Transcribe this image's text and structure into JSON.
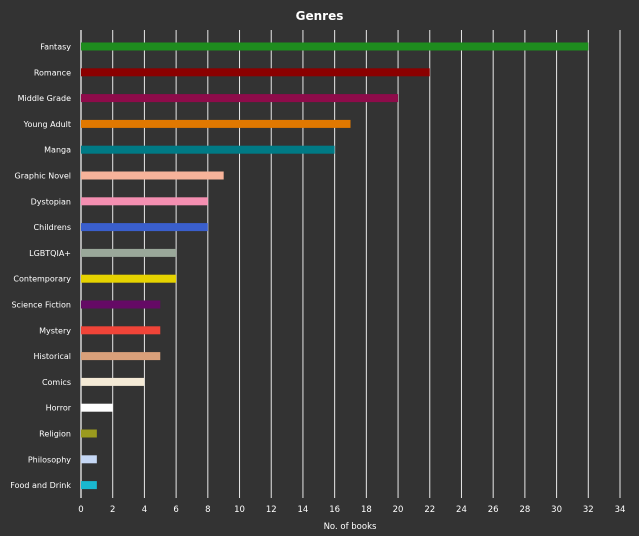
{
  "chart_data": {
    "type": "bar",
    "orientation": "horizontal",
    "title": "Genres",
    "xlabel": "No. of books",
    "ylabel": "",
    "xlim": [
      0,
      34
    ],
    "xticks": [
      0,
      2,
      4,
      6,
      8,
      10,
      12,
      14,
      16,
      18,
      20,
      22,
      24,
      26,
      28,
      30,
      32,
      34
    ],
    "grid": "vertical",
    "legend": "none",
    "background": "#333333",
    "categories": [
      "Fantasy",
      "Romance",
      "Middle Grade",
      "Young Adult",
      "Manga",
      "Graphic Novel",
      "Dystopian",
      "Childrens",
      "LGBTQIA+",
      "Contemporary",
      "Science Fiction",
      "Mystery",
      "Historical",
      "Comics",
      "Horror",
      "Religion",
      "Philosophy",
      "Food and Drink"
    ],
    "values": [
      32,
      22,
      20,
      17,
      16,
      9,
      8,
      8,
      6,
      6,
      5,
      5,
      5,
      4,
      2,
      1,
      1,
      1
    ],
    "colors": [
      "#1e8c1e",
      "#8b0000",
      "#8e0b4a",
      "#e07800",
      "#007a85",
      "#f7b39a",
      "#f48fb1",
      "#3a5fcd",
      "#9aa89a",
      "#e6d300",
      "#650a65",
      "#f04438",
      "#d9a07a",
      "#f4ead6",
      "#ffffff",
      "#9a9a1e",
      "#c6d8f5",
      "#1ab8d0"
    ]
  }
}
